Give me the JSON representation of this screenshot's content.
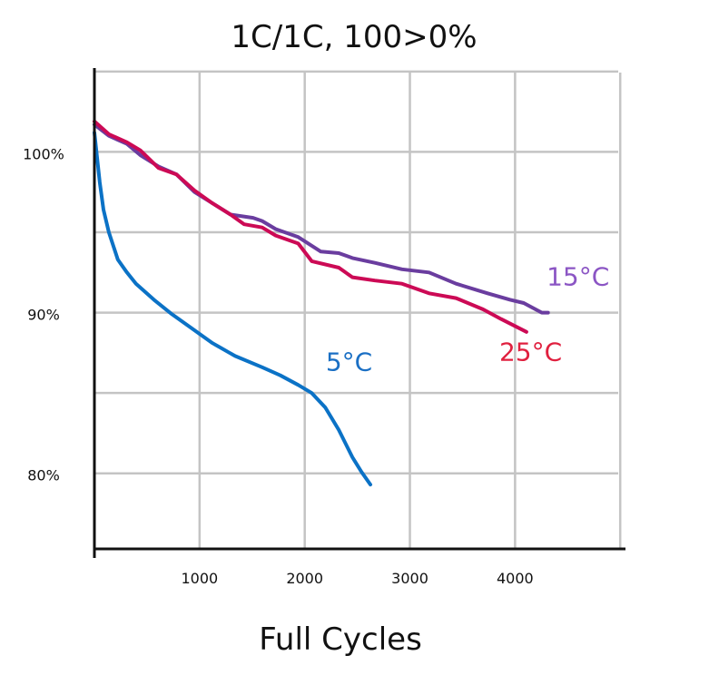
{
  "chart_data": {
    "type": "line",
    "title": "1C/1C, 100>0%",
    "xlabel": "Full Cycles",
    "ylabel": "",
    "xlim": [
      0,
      5050
    ],
    "ylim": [
      75.3,
      105.5
    ],
    "x_ticks": [
      1000,
      2000,
      3000,
      4000
    ],
    "x_tick_labels": [
      "1000",
      "2000",
      "3000",
      "4000"
    ],
    "x_grid": [
      1000,
      2000,
      3000,
      4000,
      5000
    ],
    "y_ticks": [
      80,
      90,
      100
    ],
    "y_tick_labels": [
      "80%",
      "90%",
      "100%"
    ],
    "y_grid": [
      80,
      85,
      90,
      95,
      100,
      105
    ],
    "grid": true,
    "series": [
      {
        "name": "15°C",
        "color": "#6a3d9f",
        "label_color": "#8b55c4",
        "x": [
          0,
          137,
          309,
          437,
          609,
          780,
          952,
          1123,
          1295,
          1509,
          1595,
          1724,
          1938,
          2153,
          2324,
          2453,
          2667,
          2925,
          3182,
          3439,
          3739,
          3954,
          4082,
          4254,
          4314
        ],
        "y": [
          101.7,
          101.0,
          100.5,
          99.8,
          99.1,
          98.6,
          97.5,
          96.8,
          96.1,
          95.9,
          95.7,
          95.2,
          94.7,
          93.8,
          93.7,
          93.4,
          93.1,
          92.7,
          92.5,
          91.8,
          91.2,
          90.8,
          90.6,
          90.0,
          90.0
        ]
      },
      {
        "name": "25°C",
        "color": "#cc0a55",
        "label_color": "#e0203f",
        "x": [
          0,
          137,
          309,
          437,
          609,
          780,
          952,
          1123,
          1295,
          1424,
          1595,
          1724,
          1938,
          2067,
          2324,
          2453,
          2667,
          2925,
          3182,
          3439,
          3696,
          3868,
          4108
        ],
        "y": [
          101.9,
          101.1,
          100.6,
          100.1,
          99.0,
          98.6,
          97.6,
          96.8,
          96.1,
          95.5,
          95.3,
          94.8,
          94.3,
          93.2,
          92.8,
          92.2,
          92.0,
          91.8,
          91.2,
          90.9,
          90.2,
          89.6,
          88.8
        ]
      },
      {
        "name": "5°C",
        "color": "#0b72c6",
        "label_color": "#1a6fc4",
        "x": [
          0,
          51,
          86,
          137,
          223,
          309,
          395,
          566,
          738,
          909,
          1123,
          1338,
          1595,
          1767,
          1938,
          2067,
          2195,
          2324,
          2453,
          2539,
          2624
        ],
        "y": [
          101.2,
          98.1,
          96.4,
          95.0,
          93.3,
          92.5,
          91.8,
          90.8,
          89.9,
          89.1,
          88.1,
          87.3,
          86.6,
          86.1,
          85.5,
          85.0,
          84.1,
          82.7,
          81.0,
          80.1,
          79.3
        ]
      }
    ],
    "annotations": [
      {
        "text": "15°C",
        "series": "15°C",
        "x": 4300,
        "y": 91.7
      },
      {
        "text": "25°C",
        "series": "25°C",
        "x": 3850,
        "y": 87.0
      },
      {
        "text": "5°C",
        "series": "5°C",
        "x": 2200,
        "y": 86.4
      }
    ]
  }
}
